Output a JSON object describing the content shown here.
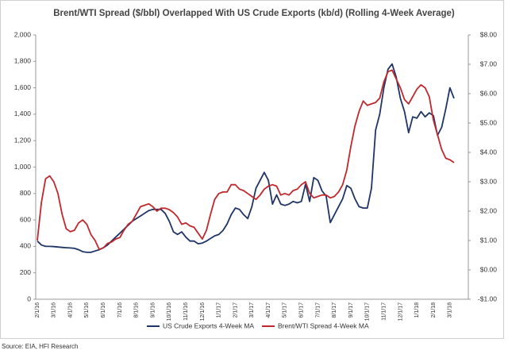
{
  "chart_data": {
    "type": "line",
    "title": "Brent/WTI Spread ($/bbl) Overlapped With US Crude Exports (kb/d) (Rolling 4-Week Average)",
    "source": "Source: EIA, HFI Research",
    "categories": [
      "2/1/16",
      null,
      null,
      null,
      "3/1/16",
      null,
      null,
      null,
      "4/1/16",
      null,
      null,
      null,
      "5/1/16",
      null,
      null,
      null,
      "6/1/16",
      null,
      null,
      null,
      "7/1/16",
      null,
      null,
      null,
      "8/1/16",
      null,
      null,
      null,
      "9/1/16",
      null,
      null,
      null,
      "10/1/16",
      null,
      null,
      null,
      "11/1/16",
      null,
      null,
      null,
      "12/1/16",
      null,
      null,
      null,
      "1/1/17",
      null,
      null,
      null,
      "2/1/17",
      null,
      null,
      null,
      "3/1/17",
      null,
      null,
      null,
      "4/1/17",
      null,
      null,
      null,
      "5/1/17",
      null,
      null,
      null,
      "6/1/17",
      null,
      null,
      null,
      "7/1/17",
      null,
      null,
      null,
      "8/1/17",
      null,
      null,
      null,
      "9/1/17",
      null,
      null,
      null,
      "10/1/17",
      null,
      null,
      null,
      "11/1/17",
      null,
      null,
      null,
      "12/1/17",
      null,
      null,
      null,
      "1/1/18",
      null,
      null,
      null,
      "2/1/18",
      null,
      null,
      null,
      "3/1/18",
      null
    ],
    "series": [
      {
        "name": "US Crude Exports 4-Week MA",
        "color": "#1f3566",
        "axis": "y",
        "values": [
          440,
          410,
          400,
          400,
          398,
          395,
          392,
          390,
          388,
          385,
          375,
          360,
          355,
          355,
          365,
          375,
          390,
          410,
          440,
          470,
          500,
          530,
          560,
          590,
          610,
          630,
          650,
          670,
          680,
          680,
          680,
          650,
          590,
          510,
          490,
          510,
          470,
          440,
          440,
          420,
          425,
          440,
          460,
          480,
          490,
          520,
          570,
          640,
          690,
          680,
          640,
          610,
          700,
          840,
          900,
          960,
          900,
          720,
          790,
          720,
          710,
          720,
          740,
          730,
          740,
          870,
          740,
          920,
          900,
          820,
          780,
          580,
          640,
          700,
          760,
          860,
          840,
          760,
          700,
          690,
          690,
          840,
          1280,
          1400,
          1600,
          1740,
          1780,
          1680,
          1520,
          1420,
          1260,
          1380,
          1370,
          1420,
          1380,
          1410,
          1390,
          1240,
          1300,
          1440,
          1600,
          1520
        ]
      },
      {
        "name": "Brent/WTI Spread 4-Week MA",
        "color": "#c0282d",
        "axis": "y2",
        "values": [
          1.0,
          2.3,
          3.1,
          3.2,
          3.0,
          2.6,
          1.9,
          1.4,
          1.3,
          1.35,
          1.6,
          1.7,
          1.55,
          1.2,
          1.0,
          0.7,
          0.75,
          0.9,
          0.95,
          1.05,
          1.1,
          1.35,
          1.55,
          1.65,
          1.9,
          2.15,
          2.2,
          2.25,
          2.15,
          2.0,
          2.1,
          2.1,
          2.05,
          1.95,
          1.8,
          1.55,
          1.6,
          1.5,
          1.45,
          1.25,
          1.05,
          1.35,
          1.9,
          2.4,
          2.6,
          2.65,
          2.65,
          2.9,
          2.9,
          2.75,
          2.7,
          2.6,
          2.5,
          2.4,
          2.55,
          2.75,
          2.85,
          2.9,
          2.85,
          2.55,
          2.6,
          2.55,
          2.7,
          2.75,
          2.9,
          3.0,
          2.6,
          2.45,
          2.5,
          2.55,
          2.55,
          2.45,
          2.5,
          2.65,
          2.9,
          3.4,
          4.2,
          4.9,
          5.4,
          5.75,
          5.6,
          5.65,
          5.7,
          5.85,
          6.4,
          6.75,
          6.8,
          6.5,
          6.2,
          5.8,
          5.65,
          5.9,
          6.15,
          6.3,
          6.2,
          5.9,
          5.1,
          4.6,
          4.1,
          3.8,
          3.75,
          3.65
        ]
      }
    ],
    "ylim": [
      0,
      2000
    ],
    "yticks": [
      0,
      {
        "value": 200,
        "label": "200"
      },
      {
        "value": 400,
        "label": "400"
      },
      {
        "value": 600,
        "label": "600"
      },
      {
        "value": 800,
        "label": "800"
      },
      {
        "value": 1000,
        "label": "1,000"
      },
      {
        "value": 1200,
        "label": "1,200"
      },
      {
        "value": 1400,
        "label": "1,400"
      },
      {
        "value": 1600,
        "label": "1,600"
      },
      {
        "value": 1800,
        "label": "1,800"
      },
      {
        "value": 2000,
        "label": "2,000"
      }
    ],
    "y2lim": [
      -1,
      8
    ],
    "y2ticks": [
      {
        "value": -1,
        "label": "-$1.00"
      },
      {
        "value": 0,
        "label": "$0.00"
      },
      {
        "value": 1,
        "label": "$1.00"
      },
      {
        "value": 2,
        "label": "$2.00"
      },
      {
        "value": 3,
        "label": "$3.00"
      },
      {
        "value": 4,
        "label": "$4.00"
      },
      {
        "value": 5,
        "label": "$5.00"
      },
      {
        "value": 6,
        "label": "$6.00"
      },
      {
        "value": 7,
        "label": "$7.00"
      },
      {
        "value": 8,
        "label": "$8.00"
      }
    ],
    "legend": "bottom"
  }
}
